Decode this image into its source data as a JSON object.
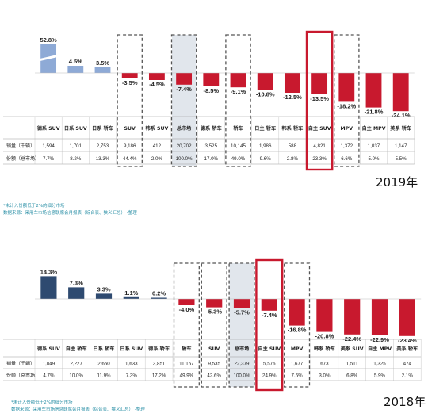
{
  "colors": {
    "positive_2019": "#8eaad6",
    "positive_2018": "#2e4a70",
    "negative": "#c8192e",
    "highlight": "#c8192e",
    "label": "#222222"
  },
  "captions": {
    "year_2019": "2019年",
    "year_2018": "2018年",
    "note_2019": "*未计入份额低于2%的细分市场",
    "source_2019": "数据来源：采用车市场信息联席会月报表（综合表、狭义汇总） -整理",
    "note_2018": "*未计入份额低于2%的细分市场",
    "source_2018": "数据来源：采用车市场信息联席会月报表（综合表、狭义汇总） -整理"
  },
  "chart_data": [
    {
      "type": "bar",
      "id": "2019",
      "row_labels": [
        "销量（千辆）",
        "份额（总市场）"
      ],
      "categories": [
        "德系 SUV",
        "日系 SUV",
        "日系 轿车",
        "SUV",
        "韩系 SUV",
        "总市场",
        "德系 轿车",
        "轿车",
        "日主 轿车",
        "韩系 轿车",
        "自主 SUV",
        "MPV",
        "自主 MPV",
        "美系 轿车"
      ],
      "values": [
        52.8,
        4.5,
        3.5,
        -3.5,
        -4.5,
        -7.4,
        -8.5,
        -9.1,
        -10.8,
        -12.5,
        -13.5,
        -18.2,
        -21.8,
        -24.1
      ],
      "value_labels": [
        "52.8%",
        "4.5%",
        "3.5%",
        "-3.5%",
        "-4.5%",
        "-7.4%",
        "-8.5%",
        "-9.1%",
        "-10.8%",
        "-12.5%",
        "-13.5%",
        "-18.2%",
        "-21.8%",
        "-24.1%"
      ],
      "sales": [
        "1,594",
        "1,701",
        "2,753",
        "9,186",
        "412",
        "20,702",
        "3,525",
        "10,145",
        "1,986",
        "588",
        "4,821",
        "1,372",
        "1,037",
        "1,147"
      ],
      "shares": [
        "7.7%",
        "8.2%",
        "13.3%",
        "44.4%",
        "2.0%",
        "100.0%",
        "17.0%",
        "49.0%",
        "9.6%",
        "2.8%",
        "23.3%",
        "6.6%",
        "5.0%",
        "5.5%"
      ],
      "dashed_boxes": [
        3,
        5,
        7,
        11
      ],
      "shaded": [
        5
      ],
      "highlight": 10,
      "broken_axis_bar": 0
    },
    {
      "type": "bar",
      "id": "2018",
      "row_labels": [
        "销量（千辆）",
        "份额（总市场）"
      ],
      "categories": [
        "德系 SUV",
        "自主 轿车",
        "日系 轿车",
        "日系 SUV",
        "德系 轿车",
        "轿车",
        "SUV",
        "总市场",
        "自主 SUV",
        "MPV",
        "韩系 轿车",
        "美系 SUV",
        "自主 MPV",
        "美系 轿车"
      ],
      "values": [
        14.3,
        7.3,
        3.3,
        1.1,
        0.2,
        -4.0,
        -5.3,
        -5.7,
        -7.4,
        -16.8,
        -20.8,
        -22.4,
        -22.9,
        -23.4
      ],
      "value_labels": [
        "14.3%",
        "7.3%",
        "3.3%",
        "1.1%",
        "0.2%",
        "-4.0%",
        "-5.3%",
        "-5.7%",
        "-7.4%",
        "-16.8%",
        "-20.8%",
        "-22.4%",
        "-22.9%",
        "-23.4%"
      ],
      "sales": [
        "1,049",
        "2,227",
        "2,660",
        "1,633",
        "3,851",
        "11,167",
        "9,535",
        "22,379",
        "5,576",
        "1,677",
        "673",
        "1,511",
        "1,325",
        "474"
      ],
      "shares": [
        "4.7%",
        "10.0%",
        "11.9%",
        "7.3%",
        "17.2%",
        "49.9%",
        "42.6%",
        "100.0%",
        "24.9%",
        "7.5%",
        "3.0%",
        "6.8%",
        "5.9%",
        "2.1%"
      ],
      "dashed_boxes": [
        5,
        6,
        7,
        9
      ],
      "shaded": [
        7
      ],
      "highlight": 8,
      "broken_axis_bar": null
    }
  ]
}
